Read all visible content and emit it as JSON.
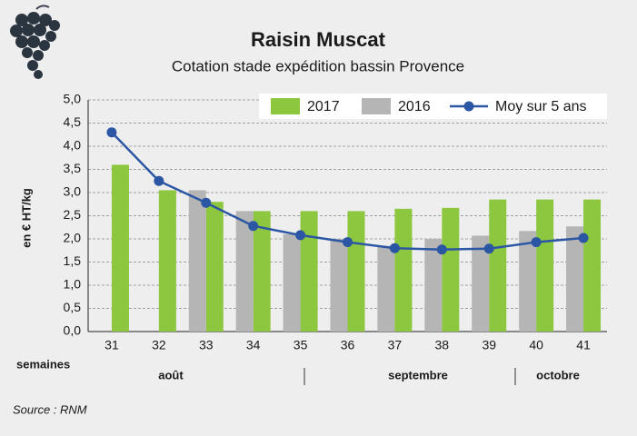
{
  "chart_data": {
    "type": "bar",
    "title": "Raisin Muscat",
    "subtitle": "Cotation stade expédition bassin Provence",
    "y_label": "en € HT/kg",
    "x_label": "semaines",
    "x_groups": [
      "août",
      "septembre",
      "octobre"
    ],
    "source": "Source : RNM",
    "categories": [
      "31",
      "32",
      "33",
      "34",
      "35",
      "36",
      "37",
      "38",
      "39",
      "40",
      "41"
    ],
    "series": [
      {
        "name": "2017",
        "type": "bar",
        "color": "#8dc63f",
        "values": [
          3.6,
          3.05,
          2.8,
          2.6,
          2.6,
          2.6,
          2.65,
          2.67,
          2.85,
          2.85,
          2.85
        ]
      },
      {
        "name": "2016",
        "type": "bar",
        "color": "#b5b5b5",
        "values": [
          null,
          null,
          3.05,
          2.6,
          2.1,
          2.0,
          1.85,
          2.0,
          2.07,
          2.17,
          2.27
        ]
      },
      {
        "name": "Moy sur 5 ans",
        "type": "line",
        "color": "#2a56a4",
        "values": [
          4.3,
          3.25,
          2.78,
          2.28,
          2.08,
          1.93,
          1.8,
          1.77,
          1.79,
          1.93,
          2.02
        ]
      }
    ],
    "ylim": [
      0,
      5
    ],
    "yticks": [
      {
        "value": 0,
        "label": "0,0"
      },
      {
        "value": 0.5,
        "label": "0,5"
      },
      {
        "value": 1,
        "label": "1,0"
      },
      {
        "value": 1.5,
        "label": "1,5"
      },
      {
        "value": 2,
        "label": "2,0"
      },
      {
        "value": 2.5,
        "label": "2,5"
      },
      {
        "value": 3,
        "label": "3,0"
      },
      {
        "value": 3.5,
        "label": "3,5"
      },
      {
        "value": 4,
        "label": "4,0"
      },
      {
        "value": 4.5,
        "label": "4,5"
      },
      {
        "value": 5,
        "label": "5,0"
      }
    ],
    "grid": true
  }
}
